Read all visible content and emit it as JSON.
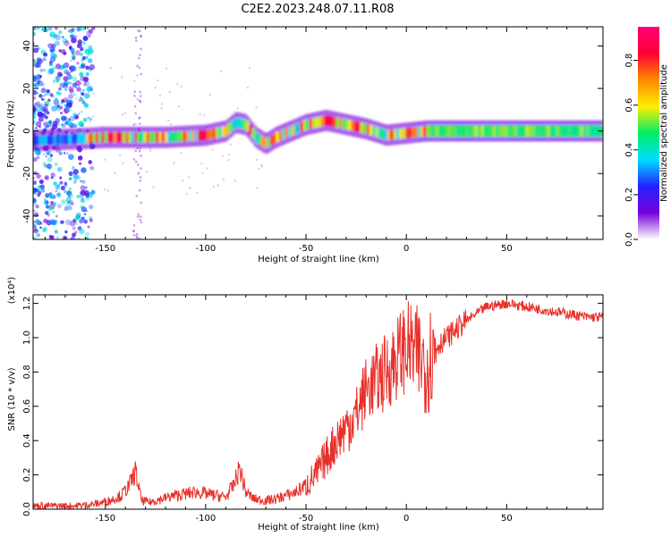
{
  "title": "C2E2.2023.248.07.11.R08",
  "colors": {
    "snr_line": "#e8302a",
    "frame": "#000000"
  },
  "chart_data": [
    {
      "type": "heatmap",
      "xlabel": "Height of straight line (km)",
      "ylabel": "Frequency (Hz)",
      "xlim": [
        -186,
        98
      ],
      "ylim": [
        -51,
        49
      ],
      "xticks": [
        -150,
        -100,
        -50,
        0,
        50
      ],
      "yticks": [
        -40,
        -20,
        0,
        20,
        40
      ],
      "colorbar": {
        "label": "Normalized spectral amplitude",
        "range": [
          0.0,
          0.95
        ],
        "ticks": [
          0.0,
          0.2,
          0.4,
          0.6,
          0.8
        ],
        "colormap": [
          "#ffffff",
          "#7700dd",
          "#2222ff",
          "#00ddff",
          "#00ee66",
          "#ffee00",
          "#ff8800",
          "#ff0033",
          "#ff0077"
        ]
      },
      "ridge": [
        [
          -186,
          -4.5
        ],
        [
          -160,
          -3.5
        ],
        [
          -150,
          -3
        ],
        [
          -120,
          -3
        ],
        [
          -100,
          -2
        ],
        [
          -90,
          0
        ],
        [
          -85,
          4
        ],
        [
          -80,
          3
        ],
        [
          -75,
          -3
        ],
        [
          -70,
          -6
        ],
        [
          -65,
          -3
        ],
        [
          -60,
          -1
        ],
        [
          -50,
          3
        ],
        [
          -40,
          5
        ],
        [
          -30,
          3
        ],
        [
          -20,
          1
        ],
        [
          -10,
          -2
        ],
        [
          0,
          -1
        ],
        [
          10,
          0
        ],
        [
          20,
          0
        ],
        [
          50,
          0
        ],
        [
          98,
          0
        ]
      ]
    },
    {
      "type": "line",
      "xlabel": "Height of straight line (km)",
      "ylabel": "SNR (10 * v/v)",
      "yscale_label": "(x10⁴)",
      "xlim": [
        -186,
        98
      ],
      "ylim": [
        0.0,
        1.25
      ],
      "xticks": [
        -150,
        -100,
        -50,
        0,
        50
      ],
      "yticks": [
        0.0,
        0.2,
        0.4,
        0.6,
        0.8,
        1.0,
        1.2
      ],
      "series": [
        {
          "x": [
            -186,
            -175,
            -165,
            -155,
            -148,
            -142,
            -138,
            -135,
            -132,
            -128,
            -122,
            -115,
            -110,
            -105,
            -100,
            -95,
            -90,
            -86,
            -83,
            -80,
            -76,
            -70,
            -65,
            -60,
            -55,
            -50,
            -45,
            -40,
            -35,
            -30,
            -25,
            -20,
            -15,
            -10,
            -5,
            0,
            5,
            10,
            15,
            20,
            25,
            30,
            40,
            50,
            60,
            70,
            80,
            90,
            98
          ],
          "y": [
            0.02,
            0.02,
            0.02,
            0.03,
            0.05,
            0.08,
            0.14,
            0.22,
            0.05,
            0.04,
            0.06,
            0.08,
            0.09,
            0.1,
            0.09,
            0.08,
            0.07,
            0.14,
            0.24,
            0.1,
            0.06,
            0.05,
            0.06,
            0.08,
            0.1,
            0.14,
            0.2,
            0.3,
            0.4,
            0.48,
            0.55,
            0.7,
            0.75,
            0.8,
            0.88,
            0.95,
            0.9,
            0.85,
            0.95,
            1.0,
            1.05,
            1.1,
            1.18,
            1.2,
            1.18,
            1.16,
            1.14,
            1.12,
            1.12
          ]
        }
      ]
    }
  ]
}
